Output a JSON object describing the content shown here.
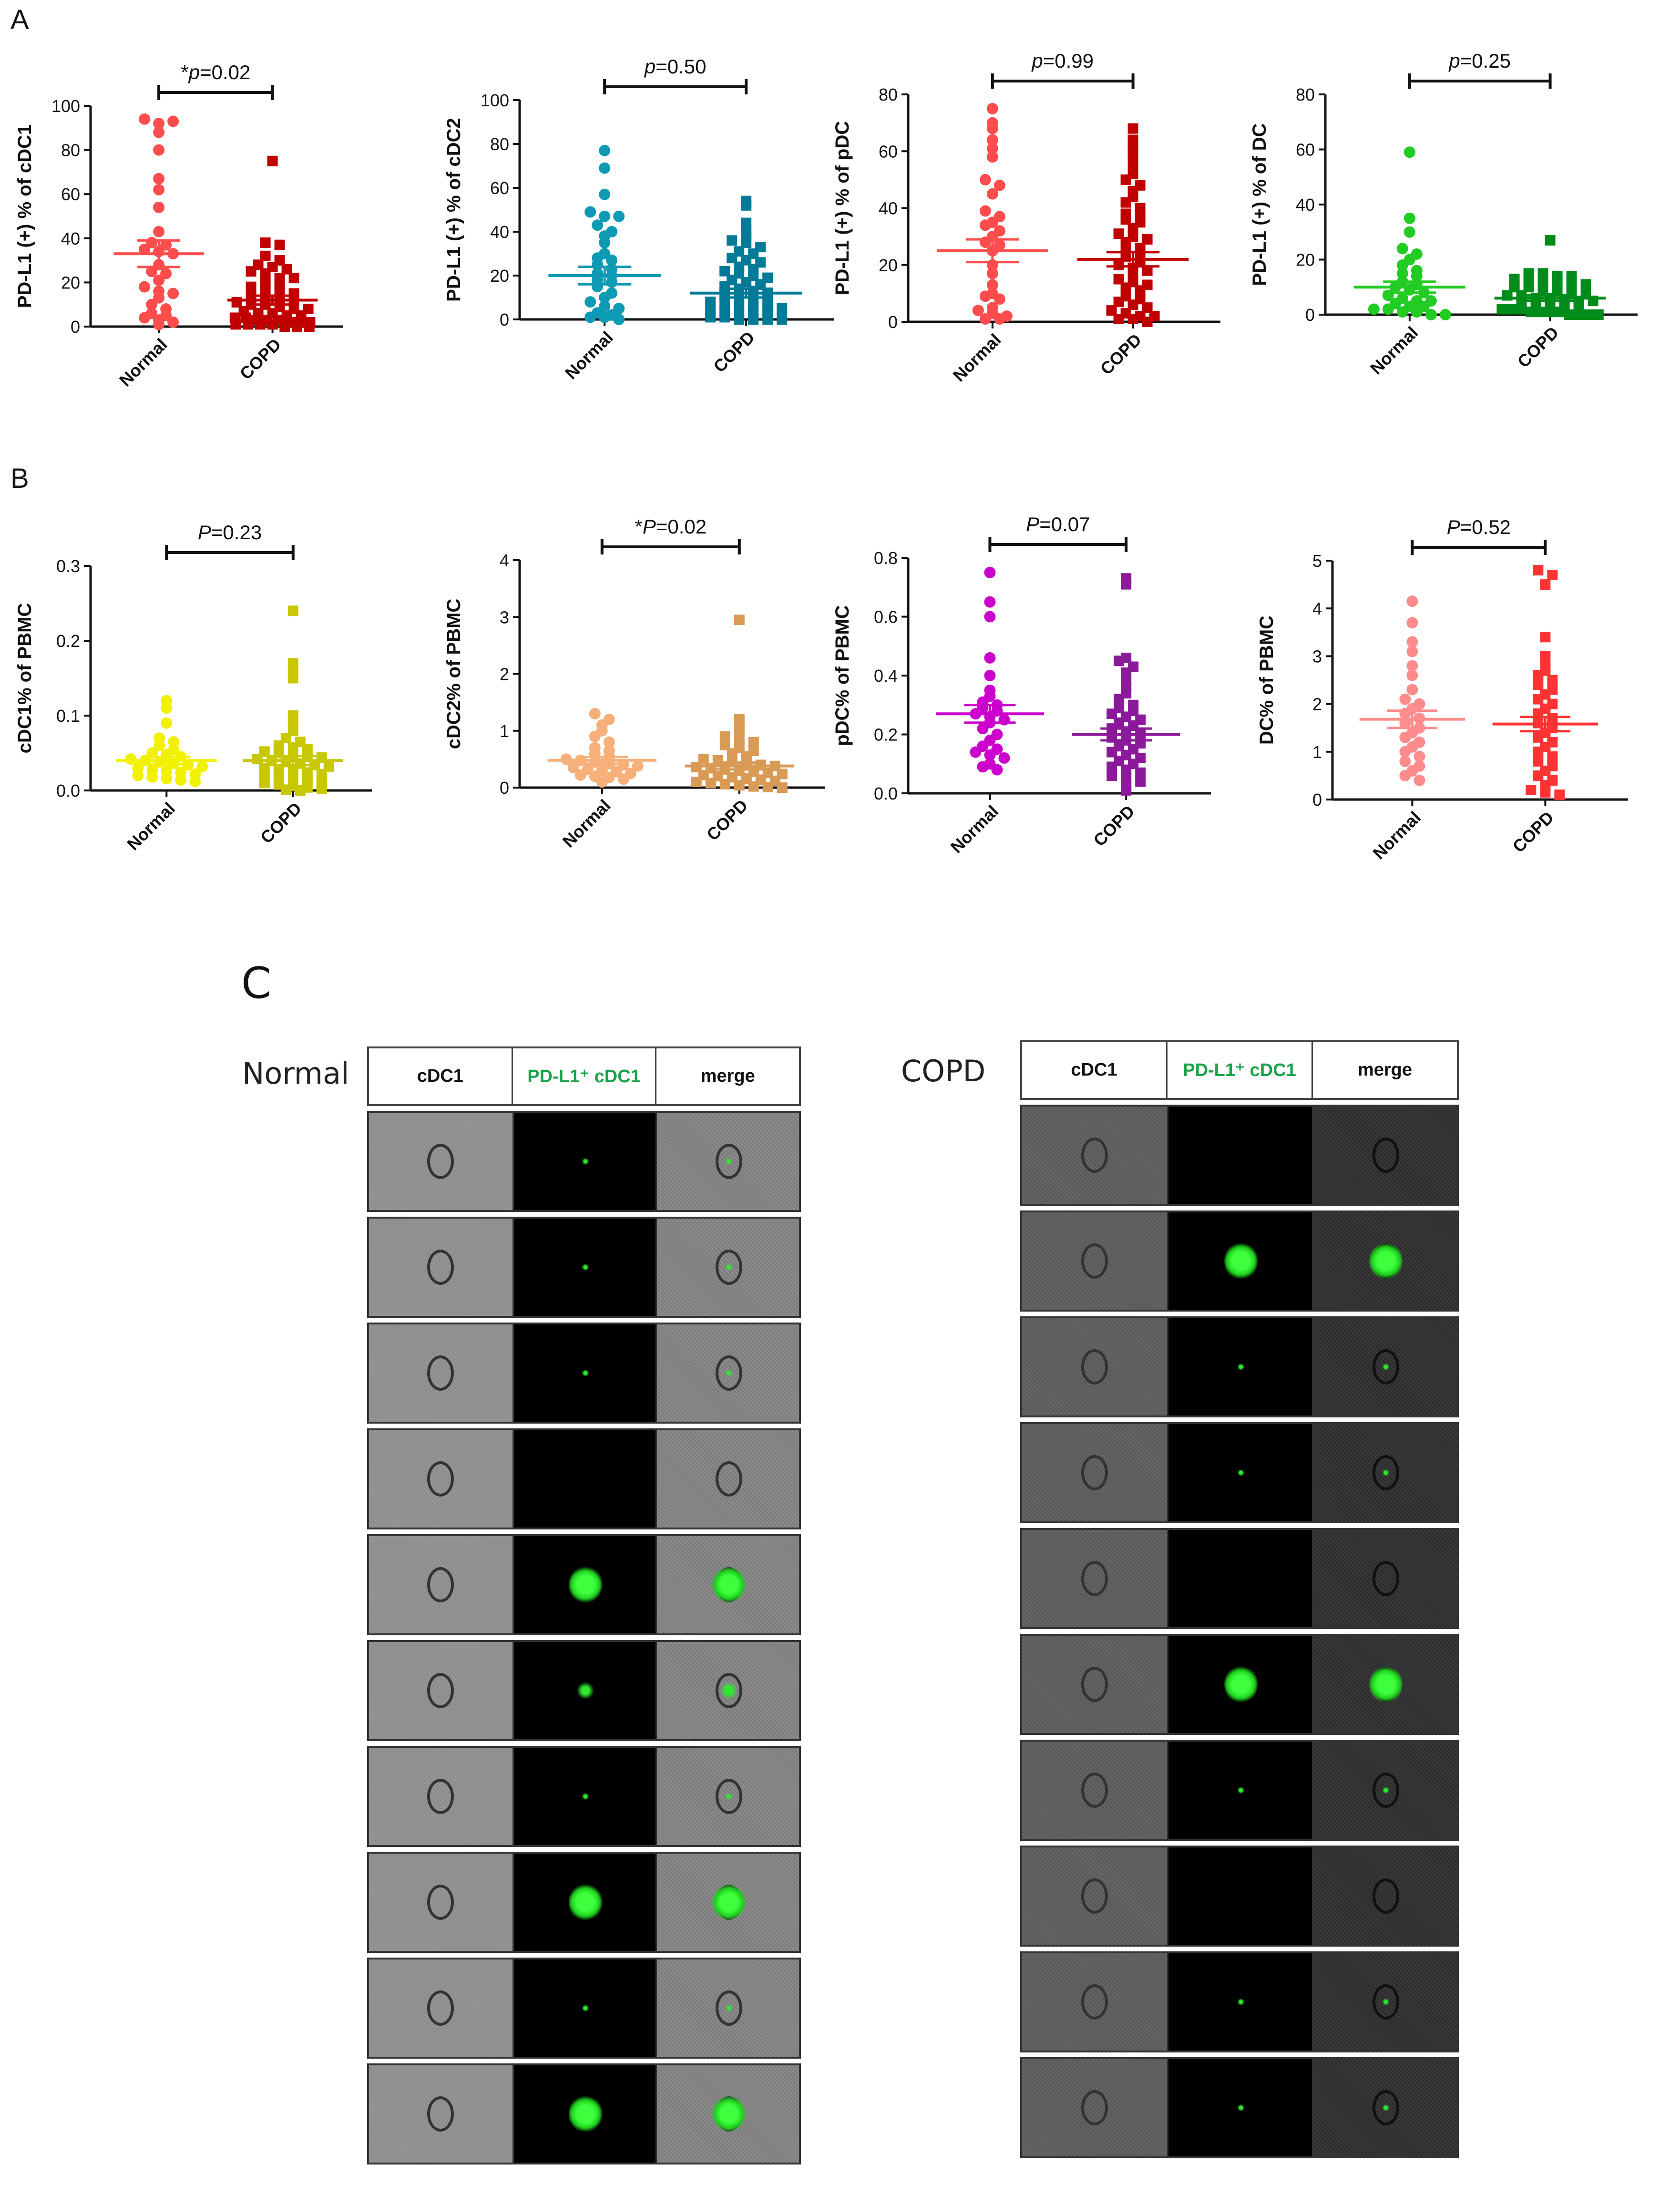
{
  "panel_labels": {
    "a": "A",
    "b": "B",
    "c": "C"
  },
  "colors": {
    "axis": "#111111",
    "green_header": "#1aa34a"
  },
  "chart_data": [
    {
      "id": "a1",
      "type": "scatter",
      "ylabel": "PD-L1 (+) % of cDC1",
      "ylim": [
        0,
        100
      ],
      "yticks": [
        0,
        20,
        40,
        60,
        80,
        100
      ],
      "ytick_labels": [
        "0",
        "20",
        "40",
        "60",
        "80",
        "100"
      ],
      "categories": [
        "Normal",
        "COPD"
      ],
      "pvalue": {
        "star": "*",
        "p": "p",
        "eq": "=0.02",
        "italic": true
      },
      "series": [
        {
          "name": "Normal",
          "marker": "circle",
          "color": "#ff4d4d",
          "mean": 33,
          "sem": 6,
          "values": [
            94,
            92,
            93,
            88,
            80,
            67,
            62,
            54,
            43,
            38,
            37,
            35,
            34,
            33,
            28,
            25,
            24,
            21,
            18,
            16,
            15,
            13,
            10,
            8,
            6,
            5,
            4,
            3,
            2,
            1
          ]
        },
        {
          "name": "COPD",
          "marker": "square",
          "color": "#c00000",
          "mean": 12,
          "sem": 2,
          "values": [
            75,
            38,
            37,
            32,
            30,
            28,
            27,
            26,
            25,
            24,
            22,
            22,
            20,
            19,
            18,
            17,
            16,
            15,
            14,
            13,
            12,
            12,
            11,
            10,
            10,
            9,
            8,
            8,
            7,
            6,
            6,
            5,
            5,
            4,
            4,
            3,
            3,
            3,
            2,
            2,
            2,
            1,
            1,
            1,
            1,
            0,
            0,
            0
          ]
        }
      ]
    },
    {
      "id": "a2",
      "type": "scatter",
      "ylabel": "PD-L1 (+) % of cDC2",
      "ylim": [
        0,
        100
      ],
      "yticks": [
        0,
        20,
        40,
        60,
        80,
        100
      ],
      "ytick_labels": [
        "0",
        "20",
        "40",
        "60",
        "80",
        "100"
      ],
      "categories": [
        "Normal",
        "COPD"
      ],
      "pvalue": {
        "star": "",
        "p": "p",
        "eq": "=0.50",
        "italic": true
      },
      "series": [
        {
          "name": "Normal",
          "marker": "circle",
          "color": "#0e9ab5",
          "mean": 20,
          "sem": 4,
          "values": [
            77,
            69,
            57,
            49,
            47,
            47,
            43,
            40,
            38,
            35,
            30,
            28,
            27,
            25,
            23,
            21,
            20,
            18,
            17,
            15,
            12,
            10,
            8,
            6,
            5,
            3,
            2,
            1,
            1,
            0
          ]
        },
        {
          "name": "COPD",
          "marker": "square",
          "color": "#007a96",
          "mean": 12,
          "sem": 2,
          "values": [
            54,
            52,
            44,
            40,
            38,
            36,
            35,
            33,
            31,
            30,
            28,
            27,
            26,
            24,
            23,
            22,
            21,
            20,
            19,
            18,
            17,
            16,
            15,
            14,
            13,
            12,
            11,
            10,
            9,
            9,
            8,
            7,
            6,
            6,
            5,
            5,
            4,
            4,
            3,
            3,
            2,
            2,
            1,
            1,
            0,
            0,
            0,
            0
          ]
        }
      ]
    },
    {
      "id": "a3",
      "type": "scatter",
      "ylabel": "PD-L1 (+) % of pDC",
      "ylim": [
        0,
        80
      ],
      "yticks": [
        0,
        20,
        40,
        60,
        80
      ],
      "ytick_labels": [
        "0",
        "20",
        "40",
        "60",
        "80"
      ],
      "categories": [
        "Normal",
        "COPD"
      ],
      "pvalue": {
        "star": "",
        "p": "p",
        "eq": "=0.99",
        "italic": true
      },
      "series": [
        {
          "name": "Normal",
          "marker": "circle",
          "color": "#ff4d4d",
          "mean": 25,
          "sem": 4,
          "values": [
            75,
            70,
            68,
            64,
            61,
            58,
            50,
            48,
            45,
            39,
            37,
            35,
            34,
            32,
            30,
            28,
            27,
            25,
            20,
            17,
            13,
            10,
            9,
            8,
            5,
            4,
            3,
            2,
            1,
            1
          ]
        },
        {
          "name": "COPD",
          "marker": "square",
          "color": "#c00000",
          "mean": 22,
          "sem": 2.5,
          "values": [
            68,
            64,
            62,
            60,
            58,
            55,
            52,
            50,
            48,
            46,
            44,
            42,
            40,
            38,
            37,
            36,
            35,
            33,
            31,
            30,
            29,
            28,
            26,
            25,
            24,
            23,
            21,
            20,
            19,
            18,
            17,
            15,
            14,
            13,
            12,
            11,
            9,
            8,
            7,
            6,
            5,
            4,
            3,
            2,
            2,
            1,
            1,
            0
          ]
        }
      ]
    },
    {
      "id": "a4",
      "type": "scatter",
      "ylabel": "PD-L1 (+) % of DC",
      "ylim": [
        0,
        80
      ],
      "yticks": [
        0,
        20,
        40,
        60,
        80
      ],
      "ytick_labels": [
        "0",
        "20",
        "40",
        "60",
        "80"
      ],
      "categories": [
        "Normal",
        "COPD"
      ],
      "pvalue": {
        "star": "",
        "p": "p",
        "eq": "=0.25",
        "italic": true
      },
      "series": [
        {
          "name": "Normal",
          "marker": "circle",
          "color": "#22cc22",
          "mean": 10,
          "sem": 2,
          "values": [
            59,
            35,
            30,
            24,
            22,
            20,
            18,
            16,
            15,
            14,
            12,
            11,
            10,
            9,
            8,
            7,
            6,
            5,
            5,
            4,
            3,
            3,
            2,
            2,
            1,
            1,
            0,
            0
          ]
        },
        {
          "name": "COPD",
          "marker": "square",
          "color": "#008c1a",
          "mean": 6,
          "sem": 1,
          "values": [
            27,
            15,
            15,
            14,
            14,
            13,
            13,
            12,
            12,
            11,
            11,
            10,
            10,
            9,
            9,
            8,
            8,
            7,
            7,
            6,
            6,
            5,
            5,
            5,
            4,
            4,
            3,
            3,
            3,
            2,
            2,
            2,
            1,
            1,
            1,
            1,
            0,
            0,
            0,
            0
          ]
        }
      ]
    },
    {
      "id": "b1",
      "type": "scatter",
      "ylabel": "cDC1% of PBMC",
      "ylim": [
        0,
        0.3
      ],
      "yticks": [
        0,
        0.1,
        0.2,
        0.3
      ],
      "ytick_labels": [
        "0.0",
        "0.1",
        "0.2",
        "0.3"
      ],
      "categories": [
        "Normal",
        "COPD"
      ],
      "pvalue": {
        "star": "",
        "p": "P",
        "eq": "=0.23",
        "italic": true
      },
      "series": [
        {
          "name": "Normal",
          "marker": "circle",
          "color": "#f2f200",
          "mean": 0.04,
          "sem": 0.005,
          "values": [
            0.12,
            0.11,
            0.09,
            0.07,
            0.065,
            0.06,
            0.055,
            0.05,
            0.048,
            0.045,
            0.042,
            0.04,
            0.038,
            0.036,
            0.034,
            0.032,
            0.03,
            0.028,
            0.026,
            0.024,
            0.022,
            0.02,
            0.018,
            0.016,
            0.014,
            0.012
          ]
        },
        {
          "name": "COPD",
          "marker": "square",
          "color": "#c8c800",
          "mean": 0.04,
          "sem": 0.006,
          "values": [
            0.24,
            0.17,
            0.16,
            0.15,
            0.1,
            0.09,
            0.08,
            0.07,
            0.065,
            0.06,
            0.058,
            0.055,
            0.052,
            0.05,
            0.048,
            0.046,
            0.044,
            0.042,
            0.04,
            0.038,
            0.036,
            0.034,
            0.032,
            0.03,
            0.028,
            0.026,
            0.024,
            0.022,
            0.02,
            0.018,
            0.016,
            0.014,
            0.012,
            0.01,
            0.008,
            0.006,
            0.004,
            0.002,
            0.001,
            0.0
          ]
        }
      ]
    },
    {
      "id": "b2",
      "type": "scatter",
      "ylabel": "cDC2% of PBMC",
      "ylim": [
        0,
        4
      ],
      "yticks": [
        0,
        1,
        2,
        3,
        4
      ],
      "ytick_labels": [
        "0",
        "1",
        "2",
        "3",
        "4"
      ],
      "categories": [
        "Normal",
        "COPD"
      ],
      "pvalue": {
        "star": "*",
        "p": "P",
        "eq": "=0.02",
        "italic": true
      },
      "series": [
        {
          "name": "Normal",
          "marker": "circle",
          "color": "#f7b07a",
          "mean": 0.48,
          "sem": 0.06,
          "values": [
            1.3,
            1.2,
            1.1,
            1.0,
            0.9,
            0.8,
            0.7,
            0.65,
            0.6,
            0.55,
            0.5,
            0.48,
            0.45,
            0.42,
            0.4,
            0.38,
            0.35,
            0.32,
            0.3,
            0.28,
            0.25,
            0.22,
            0.2,
            0.18,
            0.15,
            0.1
          ]
        },
        {
          "name": "COPD",
          "marker": "square",
          "color": "#d99a55",
          "mean": 0.38,
          "sem": 0.06,
          "values": [
            2.95,
            1.2,
            1.1,
            1.0,
            0.9,
            0.85,
            0.8,
            0.75,
            0.7,
            0.65,
            0.6,
            0.55,
            0.5,
            0.48,
            0.45,
            0.42,
            0.4,
            0.38,
            0.36,
            0.34,
            0.32,
            0.3,
            0.28,
            0.26,
            0.24,
            0.22,
            0.2,
            0.18,
            0.16,
            0.14,
            0.12,
            0.1,
            0.08,
            0.06,
            0.04,
            0.02,
            0.01,
            0.0
          ]
        }
      ]
    },
    {
      "id": "b3",
      "type": "scatter",
      "ylabel": "pDC% of PBMC",
      "ylim": [
        0,
        0.8
      ],
      "yticks": [
        0,
        0.2,
        0.4,
        0.6,
        0.8
      ],
      "ytick_labels": [
        "0.0",
        "0.2",
        "0.4",
        "0.6",
        "0.8"
      ],
      "categories": [
        "Normal",
        "COPD"
      ],
      "pvalue": {
        "star": "",
        "p": "P",
        "eq": "=0.07",
        "italic": true
      },
      "series": [
        {
          "name": "Normal",
          "marker": "circle",
          "color": "#cc00cc",
          "mean": 0.27,
          "sem": 0.03,
          "values": [
            0.75,
            0.65,
            0.6,
            0.46,
            0.4,
            0.35,
            0.33,
            0.31,
            0.3,
            0.29,
            0.28,
            0.27,
            0.26,
            0.25,
            0.24,
            0.22,
            0.2,
            0.18,
            0.16,
            0.15,
            0.14,
            0.13,
            0.12,
            0.1,
            0.09,
            0.08
          ]
        },
        {
          "name": "COPD",
          "marker": "square",
          "color": "#8b1a9b",
          "mean": 0.2,
          "sem": 0.02,
          "values": [
            0.73,
            0.71,
            0.46,
            0.45,
            0.43,
            0.41,
            0.38,
            0.36,
            0.34,
            0.32,
            0.3,
            0.29,
            0.28,
            0.27,
            0.26,
            0.25,
            0.24,
            0.23,
            0.22,
            0.21,
            0.2,
            0.19,
            0.18,
            0.17,
            0.16,
            0.15,
            0.14,
            0.13,
            0.12,
            0.11,
            0.1,
            0.09,
            0.08,
            0.07,
            0.06,
            0.05,
            0.04,
            0.02,
            0.01
          ]
        }
      ]
    },
    {
      "id": "b4",
      "type": "scatter",
      "ylabel": "DC% of PBMC",
      "ylim": [
        0,
        5
      ],
      "yticks": [
        0,
        1,
        2,
        3,
        4,
        5
      ],
      "ytick_labels": [
        "0",
        "1",
        "2",
        "3",
        "4",
        "5"
      ],
      "categories": [
        "Normal",
        "COPD"
      ],
      "pvalue": {
        "star": "",
        "p": "P",
        "eq": "=0.52",
        "italic": true
      },
      "series": [
        {
          "name": "Normal",
          "marker": "circle",
          "color": "#ff8c8c",
          "mean": 1.68,
          "sem": 0.18,
          "values": [
            4.15,
            3.7,
            3.3,
            3.1,
            2.8,
            2.6,
            2.3,
            2.1,
            2.0,
            1.9,
            1.8,
            1.7,
            1.6,
            1.5,
            1.4,
            1.3,
            1.2,
            1.1,
            1.0,
            0.9,
            0.8,
            0.7,
            0.6,
            0.5,
            0.4
          ]
        },
        {
          "name": "COPD",
          "marker": "square",
          "color": "#ff3333",
          "mean": 1.58,
          "sem": 0.15,
          "values": [
            4.8,
            4.7,
            4.5,
            3.4,
            3.0,
            2.8,
            2.7,
            2.6,
            2.5,
            2.4,
            2.3,
            2.2,
            2.1,
            2.0,
            1.9,
            1.8,
            1.7,
            1.6,
            1.5,
            1.4,
            1.3,
            1.2,
            1.1,
            1.0,
            0.9,
            0.8,
            0.7,
            0.6,
            0.5,
            0.4,
            0.3,
            0.2,
            0.15,
            0.1
          ]
        }
      ]
    }
  ],
  "image_grid": {
    "normal": {
      "label": "Normal",
      "headers": [
        "cDC1",
        "PD-L1⁺ cDC1",
        "merge"
      ],
      "rows": [
        {
          "signal": "faint"
        },
        {
          "signal": "faint"
        },
        {
          "signal": "faint"
        },
        {
          "signal": "none"
        },
        {
          "signal": "strong"
        },
        {
          "signal": "medium"
        },
        {
          "signal": "faint"
        },
        {
          "signal": "strong"
        },
        {
          "signal": "faint"
        },
        {
          "signal": "strong"
        }
      ]
    },
    "copd": {
      "label": "COPD",
      "headers": [
        "cDC1",
        "PD-L1⁺ cDC1",
        "merge"
      ],
      "rows": [
        {
          "signal": "none"
        },
        {
          "signal": "strong"
        },
        {
          "signal": "faint"
        },
        {
          "signal": "faint"
        },
        {
          "signal": "none"
        },
        {
          "signal": "strong"
        },
        {
          "signal": "faint"
        },
        {
          "signal": "none"
        },
        {
          "signal": "faint"
        },
        {
          "signal": "faint"
        }
      ]
    }
  }
}
